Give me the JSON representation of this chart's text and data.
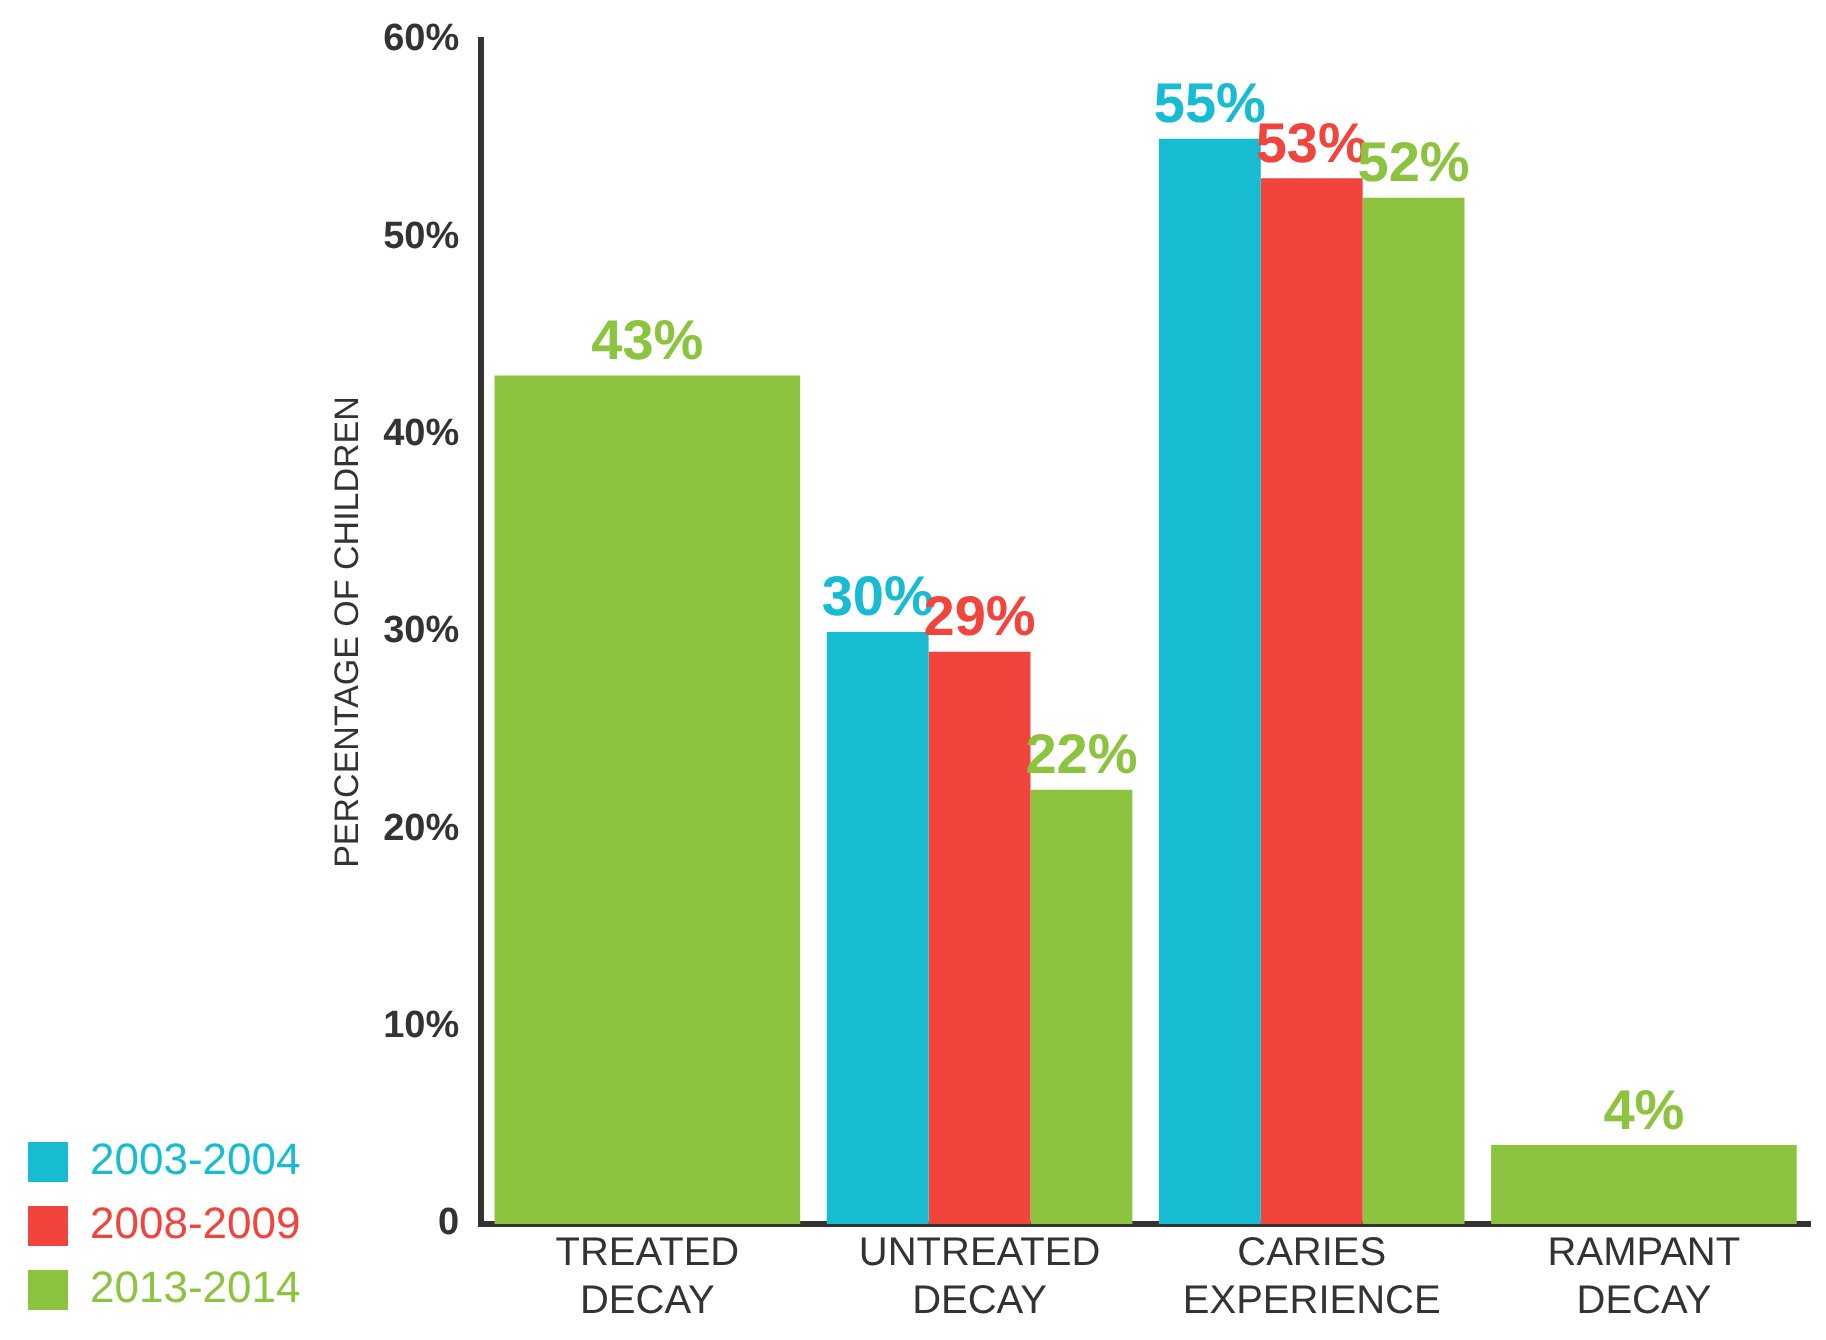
{
  "chart_data": {
    "type": "bar",
    "ylabel": "PERCENTAGE OF CHILDREN",
    "categories": [
      "TREATED DECAY",
      "UNTREATED DECAY",
      "CARIES EXPERIENCE",
      "RAMPANT DECAY"
    ],
    "series": [
      {
        "name": "2003-2004",
        "color": "#17bcd3",
        "values": [
          null,
          30,
          55,
          null
        ],
        "value_labels": [
          null,
          "30%",
          "55%",
          null
        ]
      },
      {
        "name": "2008-2009",
        "color": "#f0443d",
        "values": [
          null,
          29,
          53,
          null
        ],
        "value_labels": [
          null,
          "29%",
          "53%",
          null
        ]
      },
      {
        "name": "2013-2014",
        "color": "#8cc43f",
        "values": [
          43,
          22,
          52,
          4
        ],
        "value_labels": [
          "43%",
          "22%",
          "52%",
          "4%"
        ]
      }
    ],
    "ylim": [
      0,
      60
    ],
    "yticks": [
      {
        "value": 0,
        "label": "0"
      },
      {
        "value": 10,
        "label": "10%"
      },
      {
        "value": 20,
        "label": "20%"
      },
      {
        "value": 30,
        "label": "30%"
      },
      {
        "value": 40,
        "label": "40%"
      },
      {
        "value": 50,
        "label": "50%"
      },
      {
        "value": 60,
        "label": "60%"
      }
    ],
    "grid": false,
    "legend": "left"
  }
}
